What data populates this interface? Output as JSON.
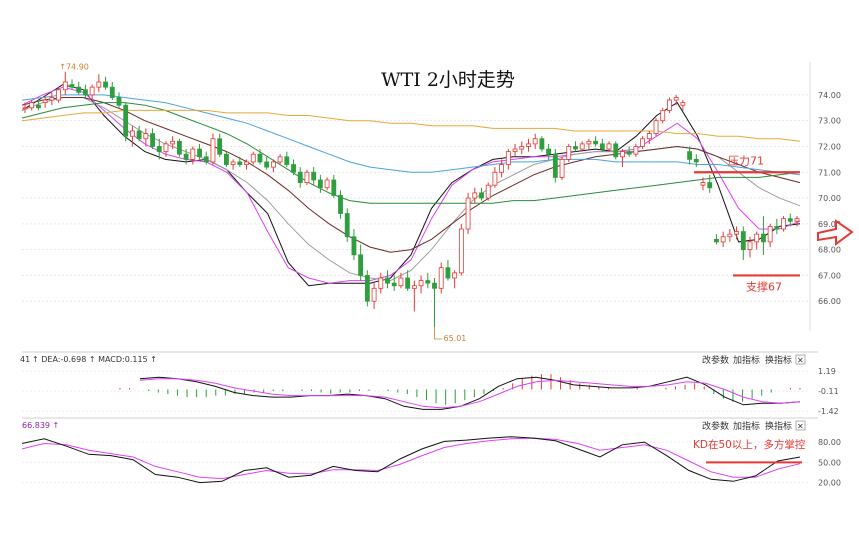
{
  "chart_data": [
    {
      "type": "candlestick",
      "title": "WTI 2小时走势",
      "ylim": [
        65.0,
        74.5
      ],
      "yticks": [
        "74.00",
        "73.00",
        "72.00",
        "71.00",
        "70.00",
        "69.00",
        "68.00",
        "67.00",
        "66.00"
      ],
      "high_label": "74.90",
      "low_label": "65.01",
      "candles": [
        [
          73.5,
          73.7,
          73.3,
          73.5
        ],
        [
          73.5,
          73.8,
          73.4,
          73.7
        ],
        [
          73.6,
          73.8,
          73.4,
          73.5
        ],
        [
          73.7,
          74.0,
          73.5,
          73.8
        ],
        [
          73.8,
          74.1,
          73.6,
          73.9
        ],
        [
          73.8,
          74.3,
          73.7,
          74.2
        ],
        [
          74.2,
          74.9,
          74.0,
          74.5
        ],
        [
          74.4,
          74.6,
          74.2,
          74.3
        ],
        [
          74.3,
          74.5,
          74.0,
          74.1
        ],
        [
          74.2,
          74.4,
          73.9,
          74.0
        ],
        [
          74.0,
          74.4,
          73.8,
          74.3
        ],
        [
          74.3,
          74.8,
          74.1,
          74.5
        ],
        [
          74.5,
          74.7,
          74.2,
          74.3
        ],
        [
          74.3,
          74.5,
          73.8,
          73.9
        ],
        [
          73.9,
          74.1,
          73.5,
          73.6
        ],
        [
          73.6,
          73.7,
          72.2,
          72.4
        ],
        [
          72.4,
          72.8,
          72.0,
          72.6
        ],
        [
          72.6,
          72.8,
          72.2,
          72.3
        ],
        [
          72.3,
          72.7,
          72.0,
          72.5
        ],
        [
          72.5,
          72.7,
          71.9,
          72.0
        ],
        [
          72.0,
          72.3,
          71.5,
          71.8
        ],
        [
          71.8,
          72.2,
          71.6,
          72.1
        ],
        [
          72.1,
          72.4,
          71.9,
          72.2
        ],
        [
          72.2,
          72.3,
          71.6,
          71.7
        ],
        [
          71.7,
          71.9,
          71.3,
          71.5
        ],
        [
          71.5,
          72.0,
          71.3,
          71.9
        ],
        [
          71.9,
          72.1,
          71.5,
          71.6
        ],
        [
          71.6,
          71.8,
          71.3,
          71.4
        ],
        [
          71.4,
          72.5,
          71.3,
          72.3
        ],
        [
          72.3,
          72.5,
          71.6,
          71.7
        ],
        [
          71.7,
          71.8,
          71.2,
          71.3
        ],
        [
          71.3,
          71.5,
          71.1,
          71.4
        ],
        [
          71.4,
          71.6,
          71.2,
          71.3
        ],
        [
          71.3,
          71.5,
          71.1,
          71.4
        ],
        [
          71.4,
          71.8,
          71.3,
          71.7
        ],
        [
          71.7,
          71.9,
          71.3,
          71.4
        ],
        [
          71.4,
          71.6,
          71.1,
          71.2
        ],
        [
          71.2,
          71.5,
          71.0,
          71.4
        ],
        [
          71.4,
          71.7,
          71.3,
          71.6
        ],
        [
          71.6,
          71.8,
          71.2,
          71.3
        ],
        [
          71.3,
          71.5,
          70.9,
          71.0
        ],
        [
          71.0,
          71.2,
          70.4,
          70.6
        ],
        [
          70.6,
          71.1,
          70.5,
          71.0
        ],
        [
          71.0,
          71.2,
          70.5,
          70.7
        ],
        [
          70.7,
          70.9,
          70.2,
          70.4
        ],
        [
          70.4,
          70.8,
          70.3,
          70.7
        ],
        [
          70.7,
          70.9,
          70.0,
          70.1
        ],
        [
          70.1,
          70.3,
          69.2,
          69.4
        ],
        [
          69.4,
          69.6,
          68.3,
          68.5
        ],
        [
          68.5,
          68.8,
          67.6,
          67.8
        ],
        [
          67.8,
          68.2,
          66.8,
          67.0
        ],
        [
          67.0,
          67.2,
          65.8,
          66.0
        ],
        [
          66.0,
          66.7,
          65.7,
          66.5
        ],
        [
          66.5,
          67.1,
          66.3,
          66.9
        ],
        [
          66.9,
          67.2,
          66.5,
          66.7
        ],
        [
          66.7,
          67.0,
          66.4,
          66.6
        ],
        [
          66.6,
          67.1,
          66.5,
          66.9
        ],
        [
          66.9,
          67.2,
          66.4,
          66.5
        ],
        [
          66.5,
          66.8,
          65.6,
          66.6
        ],
        [
          66.6,
          67.0,
          66.3,
          66.8
        ],
        [
          66.8,
          67.1,
          66.5,
          66.7
        ],
        [
          66.7,
          66.9,
          65.0,
          66.5
        ],
        [
          66.5,
          67.5,
          66.3,
          67.3
        ],
        [
          67.3,
          67.6,
          66.8,
          66.9
        ],
        [
          66.9,
          67.2,
          66.5,
          67.1
        ],
        [
          67.1,
          69.0,
          67.0,
          68.8
        ],
        [
          68.8,
          70.2,
          68.6,
          70.0
        ],
        [
          70.0,
          70.4,
          69.8,
          70.2
        ],
        [
          70.2,
          70.4,
          69.9,
          70.0
        ],
        [
          70.0,
          70.6,
          69.9,
          70.5
        ],
        [
          70.5,
          71.2,
          70.4,
          71.0
        ],
        [
          71.0,
          71.5,
          70.8,
          71.3
        ],
        [
          71.3,
          71.9,
          71.1,
          71.8
        ],
        [
          71.8,
          72.1,
          71.6,
          71.9
        ],
        [
          71.9,
          72.2,
          71.7,
          72.0
        ],
        [
          72.0,
          72.3,
          71.8,
          72.1
        ],
        [
          72.1,
          72.5,
          71.9,
          72.3
        ],
        [
          72.3,
          72.4,
          71.8,
          71.9
        ],
        [
          71.9,
          72.1,
          71.5,
          71.7
        ],
        [
          71.7,
          71.9,
          70.6,
          70.8
        ],
        [
          70.8,
          71.6,
          70.7,
          71.5
        ],
        [
          71.5,
          72.1,
          71.4,
          72.0
        ],
        [
          72.0,
          72.2,
          71.8,
          71.9
        ],
        [
          71.9,
          72.2,
          71.8,
          72.1
        ],
        [
          72.1,
          72.3,
          71.9,
          72.2
        ],
        [
          72.2,
          72.4,
          72.0,
          72.1
        ],
        [
          72.1,
          72.3,
          71.8,
          71.9
        ],
        [
          71.9,
          72.2,
          71.8,
          72.1
        ],
        [
          72.1,
          72.2,
          71.5,
          71.6
        ],
        [
          71.6,
          71.9,
          71.2,
          71.8
        ],
        [
          71.8,
          72.0,
          71.6,
          71.7
        ],
        [
          71.7,
          72.1,
          71.6,
          72.0
        ],
        [
          72.0,
          72.4,
          71.9,
          72.3
        ],
        [
          72.3,
          72.6,
          72.1,
          72.5
        ],
        [
          72.5,
          73.1,
          72.4,
          73.0
        ],
        [
          73.0,
          73.5,
          72.9,
          73.4
        ],
        [
          73.4,
          73.9,
          73.3,
          73.8
        ],
        [
          73.8,
          74.0,
          73.6,
          73.9
        ],
        [
          73.6,
          73.8,
          73.4,
          73.7
        ],
        [
          71.8,
          72.0,
          71.3,
          71.5
        ],
        [
          71.5,
          71.7,
          71.2,
          71.4
        ],
        [
          70.5,
          70.8,
          70.3,
          70.6
        ],
        [
          70.6,
          70.9,
          70.2,
          70.4
        ],
        [
          68.4,
          68.6,
          68.2,
          68.3
        ],
        [
          68.3,
          68.7,
          68.1,
          68.5
        ],
        [
          68.5,
          68.8,
          68.3,
          68.6
        ],
        [
          68.6,
          68.9,
          68.4,
          68.7
        ],
        [
          68.7,
          68.9,
          67.6,
          68.0
        ],
        [
          68.0,
          68.5,
          67.7,
          68.3
        ],
        [
          68.3,
          68.7,
          68.0,
          68.6
        ],
        [
          68.6,
          69.3,
          67.8,
          68.3
        ],
        [
          68.3,
          69.0,
          68.1,
          68.9
        ],
        [
          68.9,
          69.2,
          68.6,
          68.8
        ],
        [
          68.8,
          69.3,
          68.7,
          69.2
        ],
        [
          69.2,
          69.4,
          68.9,
          69.1
        ],
        [
          69.1,
          69.3,
          68.9,
          69.2
        ]
      ],
      "moving_averages": [
        {
          "color": "#111111",
          "values": [
            73.4,
            73.9,
            74.4,
            74.2,
            73.2,
            72.4,
            71.8,
            71.5,
            71.4,
            71.5,
            71.1,
            70.2,
            69.4,
            67.5,
            66.6,
            66.7,
            66.7,
            66.7,
            66.9,
            67.8,
            69.6,
            70.6,
            71.1,
            71.5,
            71.6,
            71.6,
            71.7,
            71.8,
            71.9,
            71.8,
            72.4,
            73.2,
            73.7,
            72.4,
            70.5,
            68.3,
            68.4,
            68.9,
            69.0
          ]
        },
        {
          "color": "#e040fb",
          "values": [
            73.6,
            74.0,
            74.3,
            74.1,
            73.4,
            72.7,
            72.1,
            71.7,
            71.5,
            71.4,
            71.0,
            70.2,
            68.7,
            67.3,
            66.9,
            66.7,
            66.8,
            66.8,
            67.0,
            67.6,
            69.2,
            70.5,
            71.1,
            71.4,
            71.5,
            71.6,
            71.6,
            71.7,
            71.8,
            71.8,
            71.9,
            72.4,
            72.9,
            72.3,
            71.0,
            69.6,
            68.8,
            68.8,
            69.1
          ]
        },
        {
          "color": "#9e9e9e",
          "values": [
            73.4,
            73.7,
            73.9,
            73.9,
            73.5,
            73.0,
            72.5,
            72.1,
            71.8,
            71.5,
            71.1,
            70.6,
            69.9,
            69.0,
            68.2,
            67.6,
            67.1,
            66.9,
            66.8,
            67.2,
            68.0,
            69.0,
            69.9,
            70.5,
            70.9,
            71.3,
            71.5,
            71.7,
            71.8,
            71.8,
            71.8,
            71.9,
            72.0,
            71.9,
            71.6,
            71.0,
            70.4,
            70.0,
            69.7
          ]
        },
        {
          "color": "#6d2b2b",
          "values": [
            73.6,
            73.8,
            73.9,
            73.9,
            73.7,
            73.4,
            73.0,
            72.7,
            72.4,
            72.1,
            71.8,
            71.4,
            70.9,
            70.3,
            69.6,
            69.0,
            68.5,
            68.1,
            67.9,
            68.0,
            68.4,
            69.0,
            69.6,
            70.1,
            70.5,
            70.9,
            71.2,
            71.4,
            71.6,
            71.7,
            71.8,
            71.9,
            72.0,
            71.9,
            71.6,
            71.3,
            71.0,
            70.8,
            70.6
          ]
        },
        {
          "color": "#2b8a3e",
          "values": [
            73.1,
            73.3,
            73.5,
            73.6,
            73.7,
            73.7,
            73.6,
            73.4,
            73.1,
            72.8,
            72.5,
            72.1,
            71.6,
            71.1,
            70.6,
            70.2,
            69.9,
            69.8,
            69.8,
            69.8,
            69.8,
            69.8,
            69.8,
            69.8,
            69.9,
            69.9,
            70.0,
            70.1,
            70.2,
            70.3,
            70.4,
            70.5,
            70.6,
            70.7,
            70.8,
            70.8,
            70.8,
            70.9,
            71.0
          ]
        },
        {
          "color": "#4aa3df",
          "values": [
            73.8,
            73.9,
            74.0,
            74.0,
            74.0,
            73.9,
            73.8,
            73.7,
            73.5,
            73.3,
            73.1,
            72.9,
            72.6,
            72.3,
            72.0,
            71.7,
            71.4,
            71.2,
            71.1,
            71.0,
            71.0,
            71.1,
            71.2,
            71.3,
            71.4,
            71.4,
            71.5,
            71.5,
            71.5,
            71.4,
            71.4,
            71.4,
            71.4,
            71.3,
            71.3,
            71.2,
            71.1,
            71.0,
            70.9
          ]
        },
        {
          "color": "#e8a83a",
          "values": [
            73.0,
            73.1,
            73.2,
            73.3,
            73.3,
            73.4,
            73.4,
            73.4,
            73.4,
            73.4,
            73.3,
            73.3,
            73.3,
            73.2,
            73.2,
            73.1,
            73.0,
            73.0,
            72.9,
            72.9,
            72.8,
            72.8,
            72.8,
            72.7,
            72.7,
            72.7,
            72.7,
            72.6,
            72.6,
            72.6,
            72.6,
            72.6,
            72.5,
            72.5,
            72.4,
            72.4,
            72.3,
            72.3,
            72.2
          ]
        }
      ],
      "annotations": [
        {
          "text": "压力71",
          "level": 71.0,
          "color": "#e53935"
        },
        {
          "text": "支撑67",
          "level": 67.0,
          "color": "#e53935"
        }
      ]
    },
    {
      "type": "macd",
      "header": "↑ DEA:-0.698 ↑ MACD:0.115 ↑",
      "header_prefix": "41",
      "yticks": [
        "1.19",
        "-0.11",
        "-1.42"
      ],
      "ylim": [
        -1.6,
        1.4
      ],
      "histogram": [
        0.1,
        0.1,
        0.0,
        -0.1,
        -0.2,
        -0.3,
        -0.4,
        -0.5,
        -0.5,
        -0.5,
        -0.4,
        -0.4,
        -0.3,
        -0.3,
        -0.2,
        -0.2,
        -0.1,
        -0.1,
        0.0,
        -0.1,
        -0.1,
        -0.2,
        -0.3,
        -0.2,
        -0.2,
        -0.1,
        -0.1,
        0.0,
        -0.1,
        -0.2,
        -0.3,
        -0.5,
        -0.7,
        -0.9,
        -1.0,
        -0.9,
        -0.7,
        -0.5,
        -0.3,
        -0.1,
        0.1,
        0.4,
        0.7,
        0.9,
        1.0,
        1.0,
        0.8,
        0.6,
        0.4,
        0.3,
        0.2,
        0.1,
        0.0,
        0.0,
        0.1,
        0.0,
        0.0,
        0.1,
        0.2,
        0.3,
        0.4,
        0.2,
        -0.3,
        -0.6,
        -0.8,
        -0.8,
        -0.6,
        -0.4,
        -0.2,
        0.0,
        0.1,
        0.1
      ],
      "dif": [
        0.7,
        0.8,
        0.7,
        0.5,
        0.2,
        -0.2,
        -0.4,
        -0.5,
        -0.5,
        -0.4,
        -0.4,
        -0.3,
        -0.4,
        -0.6,
        -1.1,
        -1.3,
        -1.3,
        -1.1,
        -0.6,
        0.2,
        0.7,
        0.8,
        0.6,
        0.3,
        0.2,
        0.1,
        0.1,
        0.2,
        0.5,
        0.8,
        0.3,
        -0.5,
        -1.0,
        -0.9,
        -0.9,
        -0.8
      ],
      "dea": [
        0.6,
        0.7,
        0.7,
        0.6,
        0.4,
        0.1,
        -0.1,
        -0.3,
        -0.4,
        -0.4,
        -0.4,
        -0.4,
        -0.4,
        -0.5,
        -0.8,
        -1.1,
        -1.2,
        -1.1,
        -0.8,
        -0.3,
        0.2,
        0.5,
        0.6,
        0.5,
        0.4,
        0.3,
        0.2,
        0.2,
        0.3,
        0.5,
        0.4,
        0.0,
        -0.5,
        -0.8,
        -0.9,
        -0.8
      ]
    },
    {
      "type": "kdj",
      "header": "66.839 ↑",
      "yticks": [
        "80.00",
        "50.00",
        "20.00"
      ],
      "ylim": [
        15,
        95
      ],
      "k": [
        78,
        85,
        74,
        62,
        60,
        54,
        32,
        28,
        20,
        22,
        38,
        42,
        28,
        31,
        44,
        38,
        36,
        55,
        70,
        81,
        83,
        86,
        88,
        86,
        82,
        70,
        58,
        76,
        80,
        60,
        38,
        25,
        22,
        30,
        52,
        58
      ],
      "d": [
        70,
        78,
        76,
        68,
        63,
        58,
        44,
        36,
        28,
        26,
        32,
        38,
        34,
        33,
        39,
        39,
        38,
        47,
        60,
        72,
        78,
        82,
        85,
        86,
        84,
        78,
        68,
        72,
        76,
        68,
        52,
        36,
        28,
        28,
        40,
        48
      ],
      "annotations": [
        {
          "text": "KD在50以上，多方掌控",
          "level": 50,
          "color": "#e53935"
        }
      ]
    }
  ],
  "toolbar": {
    "btn1": "改参数",
    "btn2": "加指标",
    "btn3": "换指标",
    "close": "✕"
  },
  "colors": {
    "up": "#e53935",
    "down": "#2e9e3e",
    "dif": "#111111",
    "dea": "#e040fb",
    "arrow": "#e53935"
  },
  "icons": {
    "next_arrow": "right-arrow-icon"
  }
}
